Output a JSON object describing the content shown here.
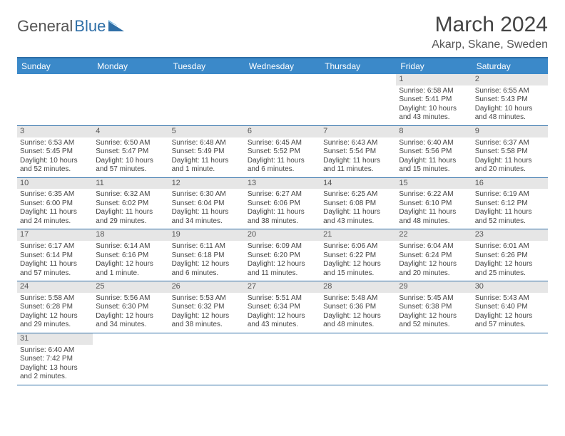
{
  "brand": {
    "part1": "General",
    "part2": "Blue"
  },
  "title": "March 2024",
  "location": "Akarp, Skane, Sweden",
  "dayNames": [
    "Sunday",
    "Monday",
    "Tuesday",
    "Wednesday",
    "Thursday",
    "Friday",
    "Saturday"
  ],
  "colors": {
    "header_bg": "#3b89c9",
    "header_border": "#2f6fa7",
    "daynum_bg": "#e6e6e6",
    "text": "#444444"
  },
  "firstDayOffset": 5,
  "days": [
    {
      "n": 1,
      "sunrise": "6:58 AM",
      "sunset": "5:41 PM",
      "daylight": "10 hours and 43 minutes."
    },
    {
      "n": 2,
      "sunrise": "6:55 AM",
      "sunset": "5:43 PM",
      "daylight": "10 hours and 48 minutes."
    },
    {
      "n": 3,
      "sunrise": "6:53 AM",
      "sunset": "5:45 PM",
      "daylight": "10 hours and 52 minutes."
    },
    {
      "n": 4,
      "sunrise": "6:50 AM",
      "sunset": "5:47 PM",
      "daylight": "10 hours and 57 minutes."
    },
    {
      "n": 5,
      "sunrise": "6:48 AM",
      "sunset": "5:49 PM",
      "daylight": "11 hours and 1 minute."
    },
    {
      "n": 6,
      "sunrise": "6:45 AM",
      "sunset": "5:52 PM",
      "daylight": "11 hours and 6 minutes."
    },
    {
      "n": 7,
      "sunrise": "6:43 AM",
      "sunset": "5:54 PM",
      "daylight": "11 hours and 11 minutes."
    },
    {
      "n": 8,
      "sunrise": "6:40 AM",
      "sunset": "5:56 PM",
      "daylight": "11 hours and 15 minutes."
    },
    {
      "n": 9,
      "sunrise": "6:37 AM",
      "sunset": "5:58 PM",
      "daylight": "11 hours and 20 minutes."
    },
    {
      "n": 10,
      "sunrise": "6:35 AM",
      "sunset": "6:00 PM",
      "daylight": "11 hours and 24 minutes."
    },
    {
      "n": 11,
      "sunrise": "6:32 AM",
      "sunset": "6:02 PM",
      "daylight": "11 hours and 29 minutes."
    },
    {
      "n": 12,
      "sunrise": "6:30 AM",
      "sunset": "6:04 PM",
      "daylight": "11 hours and 34 minutes."
    },
    {
      "n": 13,
      "sunrise": "6:27 AM",
      "sunset": "6:06 PM",
      "daylight": "11 hours and 38 minutes."
    },
    {
      "n": 14,
      "sunrise": "6:25 AM",
      "sunset": "6:08 PM",
      "daylight": "11 hours and 43 minutes."
    },
    {
      "n": 15,
      "sunrise": "6:22 AM",
      "sunset": "6:10 PM",
      "daylight": "11 hours and 48 minutes."
    },
    {
      "n": 16,
      "sunrise": "6:19 AM",
      "sunset": "6:12 PM",
      "daylight": "11 hours and 52 minutes."
    },
    {
      "n": 17,
      "sunrise": "6:17 AM",
      "sunset": "6:14 PM",
      "daylight": "11 hours and 57 minutes."
    },
    {
      "n": 18,
      "sunrise": "6:14 AM",
      "sunset": "6:16 PM",
      "daylight": "12 hours and 1 minute."
    },
    {
      "n": 19,
      "sunrise": "6:11 AM",
      "sunset": "6:18 PM",
      "daylight": "12 hours and 6 minutes."
    },
    {
      "n": 20,
      "sunrise": "6:09 AM",
      "sunset": "6:20 PM",
      "daylight": "12 hours and 11 minutes."
    },
    {
      "n": 21,
      "sunrise": "6:06 AM",
      "sunset": "6:22 PM",
      "daylight": "12 hours and 15 minutes."
    },
    {
      "n": 22,
      "sunrise": "6:04 AM",
      "sunset": "6:24 PM",
      "daylight": "12 hours and 20 minutes."
    },
    {
      "n": 23,
      "sunrise": "6:01 AM",
      "sunset": "6:26 PM",
      "daylight": "12 hours and 25 minutes."
    },
    {
      "n": 24,
      "sunrise": "5:58 AM",
      "sunset": "6:28 PM",
      "daylight": "12 hours and 29 minutes."
    },
    {
      "n": 25,
      "sunrise": "5:56 AM",
      "sunset": "6:30 PM",
      "daylight": "12 hours and 34 minutes."
    },
    {
      "n": 26,
      "sunrise": "5:53 AM",
      "sunset": "6:32 PM",
      "daylight": "12 hours and 38 minutes."
    },
    {
      "n": 27,
      "sunrise": "5:51 AM",
      "sunset": "6:34 PM",
      "daylight": "12 hours and 43 minutes."
    },
    {
      "n": 28,
      "sunrise": "5:48 AM",
      "sunset": "6:36 PM",
      "daylight": "12 hours and 48 minutes."
    },
    {
      "n": 29,
      "sunrise": "5:45 AM",
      "sunset": "6:38 PM",
      "daylight": "12 hours and 52 minutes."
    },
    {
      "n": 30,
      "sunrise": "5:43 AM",
      "sunset": "6:40 PM",
      "daylight": "12 hours and 57 minutes."
    },
    {
      "n": 31,
      "sunrise": "6:40 AM",
      "sunset": "7:42 PM",
      "daylight": "13 hours and 2 minutes."
    }
  ],
  "labels": {
    "sunrise": "Sunrise:",
    "sunset": "Sunset:",
    "daylight": "Daylight:"
  }
}
